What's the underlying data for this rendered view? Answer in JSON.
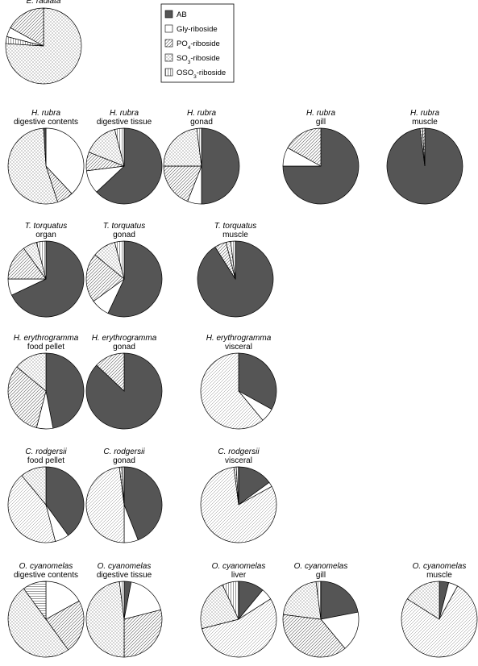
{
  "legend": {
    "items": [
      {
        "label": "AB",
        "pattern": "dark"
      },
      {
        "label": "Gly-riboside",
        "pattern": "white"
      },
      {
        "label": "PO",
        "sub": "4",
        "suffix": "-riboside",
        "pattern": "hatch-dense"
      },
      {
        "label": "SO",
        "sub": "3",
        "suffix": "-riboside",
        "pattern": "dots"
      },
      {
        "label": "OSO",
        "sub": "3",
        "suffix": "-riboside",
        "pattern": "vlines"
      }
    ]
  },
  "colors": {
    "ab": "#555555",
    "outline": "#000000",
    "background": "#ffffff"
  },
  "chart_data": [
    {
      "type": "pie",
      "species": "E. radiata",
      "tissue": "",
      "slices": [
        {
          "category": "SO3-riboside",
          "value": 76
        },
        {
          "category": "OSO3-riboside",
          "value": 3
        },
        {
          "category": "Gly-riboside",
          "value": 4
        },
        {
          "category": "PO4-riboside",
          "value": 17
        }
      ]
    },
    {
      "type": "pie",
      "species": "H. rubra",
      "tissue": "digestive contents",
      "slices": [
        {
          "category": "Gly-riboside",
          "value": 38
        },
        {
          "category": "PO4-riboside",
          "value": 7
        },
        {
          "category": "SO3-riboside",
          "value": 54
        },
        {
          "category": "AB",
          "value": 1
        }
      ]
    },
    {
      "type": "pie",
      "species": "H. rubra",
      "tissue": "digestive tissue",
      "slices": [
        {
          "category": "AB",
          "value": 63
        },
        {
          "category": "Gly-riboside",
          "value": 10
        },
        {
          "category": "PO4-riboside",
          "value": 8
        },
        {
          "category": "SO3-riboside",
          "value": 15
        },
        {
          "category": "OSO3-riboside",
          "value": 4
        }
      ]
    },
    {
      "type": "pie",
      "species": "H. rubra",
      "tissue": "gonad",
      "slices": [
        {
          "category": "AB",
          "value": 50
        },
        {
          "category": "Gly-riboside",
          "value": 6
        },
        {
          "category": "PO4-riboside",
          "value": 19
        },
        {
          "category": "SO3-riboside",
          "value": 23
        },
        {
          "category": "OSO3-riboside",
          "value": 2
        }
      ]
    },
    {
      "type": "pie",
      "species": "H. rubra",
      "tissue": "gill",
      "slices": [
        {
          "category": "AB",
          "value": 75
        },
        {
          "category": "Gly-riboside",
          "value": 8
        },
        {
          "category": "PO4-riboside",
          "value": 17
        }
      ]
    },
    {
      "type": "pie",
      "species": "H. rubra",
      "tissue": "muscle",
      "slices": [
        {
          "category": "AB",
          "value": 98
        },
        {
          "category": "SO3-riboside",
          "value": 1
        },
        {
          "category": "PO4-riboside",
          "value": 1
        }
      ]
    },
    {
      "type": "pie",
      "species": "T. torquatus",
      "tissue": "organ",
      "slices": [
        {
          "category": "AB",
          "value": 68
        },
        {
          "category": "Gly-riboside",
          "value": 7
        },
        {
          "category": "PO4-riboside",
          "value": 15
        },
        {
          "category": "SO3-riboside",
          "value": 6
        },
        {
          "category": "OSO3-riboside",
          "value": 4
        }
      ]
    },
    {
      "type": "pie",
      "species": "T. torquatus",
      "tissue": "gonad",
      "slices": [
        {
          "category": "AB",
          "value": 57
        },
        {
          "category": "Gly-riboside",
          "value": 8
        },
        {
          "category": "PO4-riboside",
          "value": 21
        },
        {
          "category": "SO3-riboside",
          "value": 10
        },
        {
          "category": "OSO3-riboside",
          "value": 4
        }
      ]
    },
    {
      "type": "pie",
      "species": "T. torquatus",
      "tissue": "muscle",
      "slices": [
        {
          "category": "AB",
          "value": 91
        },
        {
          "category": "PO4-riboside",
          "value": 5
        },
        {
          "category": "SO3-riboside",
          "value": 2
        },
        {
          "category": "OSO3-riboside",
          "value": 2
        }
      ]
    },
    {
      "type": "pie",
      "species": "H. erythrogramma",
      "tissue": "food pellet",
      "slices": [
        {
          "category": "AB",
          "value": 47
        },
        {
          "category": "Gly-riboside",
          "value": 7
        },
        {
          "category": "PO4-riboside",
          "value": 32
        },
        {
          "category": "SO3-riboside",
          "value": 14
        }
      ]
    },
    {
      "type": "pie",
      "species": "H. erythrogramma",
      "tissue": "gonad",
      "slices": [
        {
          "category": "AB",
          "value": 87
        },
        {
          "category": "PO4-riboside",
          "value": 13
        }
      ]
    },
    {
      "type": "pie",
      "species": "H. erythrogramma",
      "tissue": "visceral",
      "slices": [
        {
          "category": "AB",
          "value": 33
        },
        {
          "category": "Gly-riboside",
          "value": 6
        },
        {
          "category": "PO4-riboside",
          "value": 61
        }
      ]
    },
    {
      "type": "pie",
      "species": "C. rodgersii",
      "tissue": "food pellet",
      "slices": [
        {
          "category": "AB",
          "value": 40
        },
        {
          "category": "Gly-riboside",
          "value": 6
        },
        {
          "category": "PO4-riboside",
          "value": 43
        },
        {
          "category": "SO3-riboside",
          "value": 11
        }
      ]
    },
    {
      "type": "pie",
      "species": "C. rodgersii",
      "tissue": "gonad",
      "slices": [
        {
          "category": "AB",
          "value": 44
        },
        {
          "category": "Gly-riboside",
          "value": 6
        },
        {
          "category": "PO4-riboside",
          "value": 48
        },
        {
          "category": "SO3-riboside",
          "value": 1
        },
        {
          "category": "OSO3-riboside",
          "value": 1
        }
      ]
    },
    {
      "type": "pie",
      "species": "C. rodgersii",
      "tissue": "visceral",
      "slices": [
        {
          "category": "AB",
          "value": 15
        },
        {
          "category": "Gly-riboside",
          "value": 2
        },
        {
          "category": "PO4-riboside",
          "value": 81
        },
        {
          "category": "SO3-riboside",
          "value": 1
        },
        {
          "category": "OSO3-riboside",
          "value": 1
        }
      ]
    },
    {
      "type": "pie",
      "species": "O. cyanomelas",
      "tissue": "digestive contents",
      "slices": [
        {
          "category": "Gly-riboside",
          "value": 17
        },
        {
          "category": "PO4-riboside",
          "value": 23
        },
        {
          "category": "SO3-riboside",
          "value": 50
        },
        {
          "category": "OSO3-riboside",
          "value": 10
        }
      ]
    },
    {
      "type": "pie",
      "species": "O. cyanomelas",
      "tissue": "digestive tissue",
      "slices": [
        {
          "category": "AB",
          "value": 3
        },
        {
          "category": "Gly-riboside",
          "value": 18
        },
        {
          "category": "PO4-riboside",
          "value": 29
        },
        {
          "category": "SO3-riboside",
          "value": 48
        },
        {
          "category": "OSO3-riboside",
          "value": 2
        }
      ]
    },
    {
      "type": "pie",
      "species": "O. cyanomelas",
      "tissue": "liver",
      "slices": [
        {
          "category": "AB",
          "value": 11
        },
        {
          "category": "Gly-riboside",
          "value": 5
        },
        {
          "category": "PO4-riboside",
          "value": 55
        },
        {
          "category": "SO3-riboside",
          "value": 22
        },
        {
          "category": "OSO3-riboside",
          "value": 7
        }
      ]
    },
    {
      "type": "pie",
      "species": "O. cyanomelas",
      "tissue": "gill",
      "slices": [
        {
          "category": "AB",
          "value": 22
        },
        {
          "category": "Gly-riboside",
          "value": 17
        },
        {
          "category": "PO4-riboside",
          "value": 38
        },
        {
          "category": "SO3-riboside",
          "value": 21
        },
        {
          "category": "OSO3-riboside",
          "value": 2
        }
      ]
    },
    {
      "type": "pie",
      "species": "O. cyanomelas",
      "tissue": "muscle",
      "slices": [
        {
          "category": "AB",
          "value": 4
        },
        {
          "category": "Gly-riboside",
          "value": 4
        },
        {
          "category": "PO4-riboside",
          "value": 76
        },
        {
          "category": "SO3-riboside",
          "value": 16
        }
      ]
    }
  ]
}
